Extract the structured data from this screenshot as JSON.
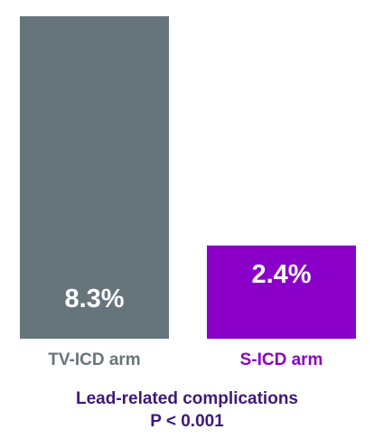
{
  "chart_data": {
    "type": "bar",
    "categories": [
      "TV-ICD arm",
      "S-ICD arm"
    ],
    "values": [
      8.3,
      2.4
    ],
    "value_labels": [
      "8.3%",
      "2.4%"
    ],
    "bar_colors": [
      "#66757c",
      "#8a00c8"
    ],
    "category_label_colors": [
      "#66757c",
      "#8a00c8"
    ],
    "ylim": [
      0,
      8.3
    ],
    "grid": false,
    "legend": "none",
    "footer": {
      "title": "Lead-related complications",
      "pvalue": "P < 0.001",
      "color": "#3d1a78"
    }
  }
}
